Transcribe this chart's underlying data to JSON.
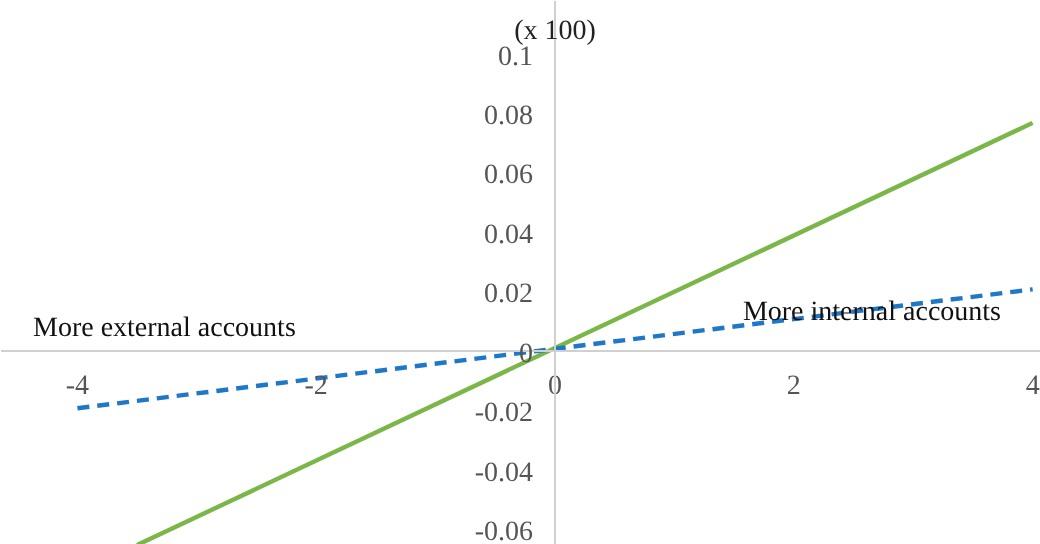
{
  "chart_data": {
    "type": "line",
    "ylabel": "(x 100)",
    "xlim": [
      -4.64,
      4.07
    ],
    "ylim": [
      -0.065,
      0.118
    ],
    "xticks": [
      -4,
      -2,
      0,
      2,
      4
    ],
    "yticks": [
      -0.06,
      -0.04,
      -0.02,
      {
        "value": 0,
        "label": "0"
      },
      0.02,
      0.04,
      0.06,
      0.08,
      0.1
    ],
    "series": [
      {
        "x": [
          -3.5,
          4
        ],
        "values": [
          -0.065,
          0.077
        ],
        "color": "#7ab648",
        "line_style": "solid"
      },
      {
        "x": [
          -4,
          4
        ],
        "values": [
          -0.019,
          0.021
        ],
        "color": "#1f77c8",
        "line_style": "dashed"
      }
    ],
    "annotations": [
      "More external accounts",
      "More internal accounts"
    ],
    "grid": false
  }
}
